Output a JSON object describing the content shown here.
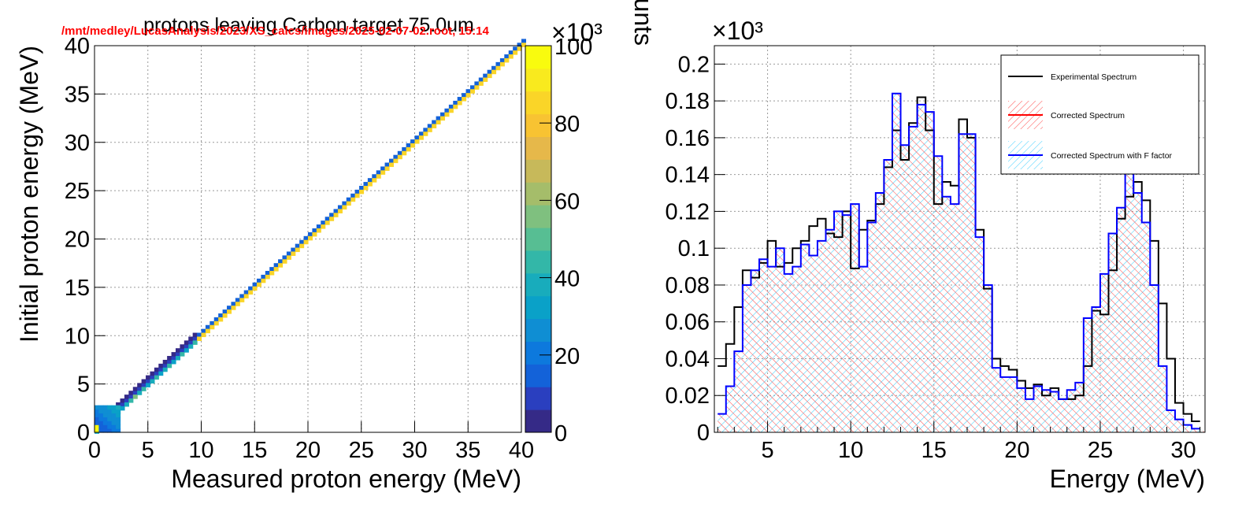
{
  "overlay_text": "/mnt/medley/LucasAnalysis/2023/XS_calcs/images/2025-02-07-02.root,  15:14",
  "colors": {
    "overlay": "#ff0000",
    "experimental": "#000000",
    "corrected": "#ff0000",
    "corrected_f": "#0000ff",
    "hatch_cyan": "#33ccff",
    "hatch_red": "#ff4444"
  },
  "chart_data": [
    {
      "type": "heatmap",
      "title": "protons leaving Carbon target  75.0um",
      "xlabel": "Measured proton energy (MeV)",
      "ylabel": "Initial proton energy (MeV)",
      "xlim": [
        0,
        40
      ],
      "ylim": [
        0,
        40
      ],
      "xticks": [
        "0",
        "5",
        "10",
        "15",
        "20",
        "25",
        "30",
        "35",
        "40"
      ],
      "yticks": [
        "0",
        "5",
        "10",
        "15",
        "20",
        "25",
        "30",
        "35",
        "40"
      ],
      "grid": true,
      "colorbar": {
        "min": 0,
        "max": 100,
        "ticks": [
          "0",
          "20",
          "40",
          "60",
          "80",
          "100"
        ],
        "exponent_label": "×10³",
        "palette": [
          "#352a87",
          "#2a3fbf",
          "#1362d9",
          "#0d79dd",
          "#0f8ed3",
          "#0aa1c8",
          "#18acbc",
          "#33b7a8",
          "#57be93",
          "#7fc07f",
          "#a5bd6a",
          "#c7b95a",
          "#e6b84a",
          "#f8c332",
          "#fad528",
          "#f9ea1e",
          "#f9fb0e"
        ]
      },
      "diagonal": {
        "x_from": 1.0,
        "x_to": 40.0,
        "offset": 0.3,
        "typical_value": 15,
        "low_energy_band": {
          "x_from": 0,
          "x_to": 9.3,
          "typical_value": 8
        },
        "origin_peak_value": 100
      }
    },
    {
      "type": "line",
      "xlabel": "Energy (MeV)",
      "ylabel": "counts",
      "y_exponent_label": "×10³",
      "xlim": [
        1.8,
        31.3
      ],
      "ylim": [
        0,
        0.21
      ],
      "xticks": [
        "5",
        "10",
        "15",
        "20",
        "25",
        "30"
      ],
      "yticks": [
        "0",
        "0.02",
        "0.04",
        "0.06",
        "0.08",
        "0.1",
        "0.12",
        "0.14",
        "0.16",
        "0.18",
        "0.2"
      ],
      "grid": true,
      "legend_position": "top-right",
      "bin_width": 0.5,
      "x_start": 2.0,
      "series": [
        {
          "name": "Experimental Spectrum",
          "values": [
            0.036,
            0.048,
            0.068,
            0.088,
            0.084,
            0.092,
            0.104,
            0.09,
            0.092,
            0.1,
            0.104,
            0.112,
            0.116,
            0.108,
            0.106,
            0.12,
            0.089,
            0.11,
            0.115,
            0.124,
            0.144,
            0.164,
            0.148,
            0.168,
            0.182,
            0.164,
            0.124,
            0.136,
            0.134,
            0.17,
            0.16,
            0.11,
            0.078,
            0.04,
            0.036,
            0.034,
            0.028,
            0.024,
            0.026,
            0.02,
            0.024,
            0.018,
            0.018,
            0.02,
            0.036,
            0.066,
            0.064,
            0.088,
            0.116,
            0.128,
            0.136,
            0.126,
            0.104,
            0.07,
            0.04,
            0.016,
            0.01,
            0.006,
            0.004,
            0.006,
            0.004,
            0.002,
            0.002,
            0.001,
            0.001,
            0.0006,
            0.0006,
            0.0004,
            0.0004,
            0.0003,
            0.0002,
            0.0001,
            0.0001,
            0.0,
            0.0,
            0.0,
            0.0,
            0.0,
            0.0
          ]
        },
        {
          "name": "Corrected Spectrum",
          "values": []
        },
        {
          "name": "Corrected Spectrum with F factor",
          "values": [
            0.01,
            0.025,
            0.044,
            0.08,
            0.088,
            0.094,
            0.09,
            0.1,
            0.086,
            0.09,
            0.102,
            0.096,
            0.104,
            0.11,
            0.12,
            0.118,
            0.124,
            0.09,
            0.114,
            0.13,
            0.148,
            0.184,
            0.156,
            0.166,
            0.178,
            0.174,
            0.15,
            0.128,
            0.124,
            0.162,
            0.162,
            0.106,
            0.08,
            0.035,
            0.03,
            0.03,
            0.024,
            0.018,
            0.025,
            0.023,
            0.022,
            0.018,
            0.023,
            0.027,
            0.062,
            0.068,
            0.086,
            0.108,
            0.122,
            0.148,
            0.13,
            0.114,
            0.08,
            0.036,
            0.012,
            0.007,
            0.004,
            0.002,
            0.001,
            0.0,
            0.0,
            0.0,
            0.0,
            0.0,
            0.0,
            0.0,
            0.0,
            0.0,
            0.0,
            0.0,
            0.0,
            0.0,
            0.0,
            0.0,
            0.0,
            0.0,
            0.0,
            0.0,
            0.0
          ]
        }
      ]
    }
  ]
}
